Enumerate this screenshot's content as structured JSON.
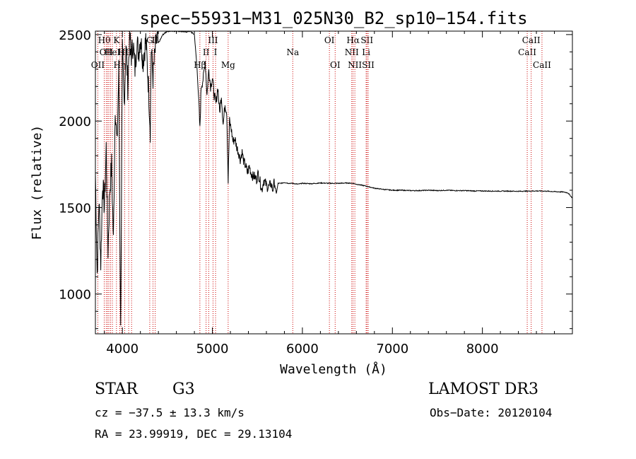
{
  "chart_data": {
    "type": "line",
    "title": "spec−55931−M31_025N30_B2_sp10−154.fits",
    "xlabel": "Wavelength (Å)",
    "ylabel": "Flux (relative)",
    "xlim": [
      3700,
      9000
    ],
    "ylim": [
      770,
      2520
    ],
    "xticks": [
      4000,
      5000,
      6000,
      7000,
      8000
    ],
    "xtick_labels": [
      "4000",
      "5000",
      "6000",
      "7000",
      "8000"
    ],
    "yticks": [
      1000,
      1500,
      2000,
      2500
    ],
    "ytick_labels": [
      "1000",
      "1500",
      "2000",
      "2500"
    ],
    "series": [
      {
        "x": [
          3700,
          3720,
          3740,
          3760,
          3780,
          3800,
          3820,
          3840,
          3860,
          3880,
          3900,
          3920,
          3940,
          3960,
          3980,
          4000,
          4020,
          4040,
          4060,
          4080,
          4100,
          4120,
          4140,
          4160,
          4180,
          4200,
          4230,
          4260,
          4290,
          4310,
          4320,
          4340,
          4360,
          4380,
          4400,
          4450,
          4500,
          4550,
          4600,
          4650,
          4700,
          4750,
          4800,
          4830,
          4850,
          4861,
          4875,
          4900,
          4920,
          4940,
          4960,
          4980,
          5000,
          5020,
          5040,
          5060,
          5080,
          5100,
          5120,
          5140,
          5160,
          5175,
          5190,
          5210,
          5230,
          5250,
          5270,
          5290,
          5310,
          5330,
          5350,
          5370,
          5390,
          5410,
          5430,
          5450,
          5470,
          5490,
          5510,
          5530,
          5550,
          5570,
          5590,
          5610,
          5630,
          5650,
          5670,
          5690,
          5710,
          5730,
          5760,
          5800,
          5850,
          5893,
          5950,
          6000,
          6100,
          6200,
          6300,
          6400,
          6500,
          6563,
          6600,
          6700,
          6800,
          6900,
          7000,
          7100,
          7200,
          7300,
          7400,
          7500,
          7600,
          7700,
          7800,
          7900,
          8000,
          8100,
          8200,
          8300,
          8400,
          8500,
          8600,
          8700,
          8800,
          8900,
          8950,
          9000
        ],
        "values": [
          1700,
          1120,
          1550,
          1180,
          1650,
          1500,
          1850,
          1250,
          1600,
          1750,
          1300,
          2100,
          1850,
          2300,
          780,
          2400,
          2100,
          2450,
          2200,
          2500,
          2380,
          2450,
          2300,
          2460,
          2400,
          2480,
          2350,
          2470,
          2200,
          1950,
          2420,
          2250,
          2380,
          2480,
          2450,
          2500,
          2520,
          2520,
          2520,
          2520,
          2515,
          2520,
          2500,
          2300,
          2100,
          1950,
          2200,
          2250,
          2350,
          2150,
          2300,
          2200,
          2250,
          2150,
          2100,
          2200,
          2050,
          2150,
          1980,
          2100,
          2050,
          1650,
          2000,
          1950,
          1880,
          1900,
          1850,
          1820,
          1780,
          1820,
          1760,
          1740,
          1700,
          1740,
          1700,
          1680,
          1680,
          1660,
          1700,
          1650,
          1600,
          1660,
          1640,
          1620,
          1620,
          1640,
          1600,
          1650,
          1580,
          1640,
          1640,
          1645,
          1640,
          1640,
          1635,
          1640,
          1638,
          1642,
          1640,
          1640,
          1642,
          1640,
          1635,
          1625,
          1612,
          1605,
          1600,
          1600,
          1598,
          1598,
          1600,
          1598,
          1600,
          1598,
          1598,
          1596,
          1596,
          1595,
          1595,
          1595,
          1594,
          1595,
          1596,
          1595,
          1592,
          1590,
          1585,
          1555
        ]
      }
    ],
    "line_color": "#000000",
    "marker_color": "#cc0000",
    "line_markers": [
      {
        "x": 3727,
        "label": "OII",
        "row": 3
      },
      {
        "x": 3798,
        "label": "Hθ",
        "row": 1
      },
      {
        "x": 3820,
        "label": "OII",
        "row": 2
      },
      {
        "x": 3835,
        "label": "",
        "row": 0
      },
      {
        "x": 3850,
        "label": "",
        "row": 0
      },
      {
        "x": 3869,
        "label": "",
        "row": 0
      },
      {
        "x": 3889,
        "label": "HeI",
        "row": 2
      },
      {
        "x": 3934,
        "label": "K",
        "row": 1
      },
      {
        "x": 3970,
        "label": "Hη",
        "row": 3
      },
      {
        "x": 3990,
        "label": "H",
        "row": 2
      },
      {
        "x": 4026,
        "label": "",
        "row": 0
      },
      {
        "x": 4070,
        "label": "II",
        "row": 2
      },
      {
        "x": 4102,
        "label": "",
        "row": 0
      },
      {
        "x": 4304,
        "label": "G",
        "row": 1
      },
      {
        "x": 4340,
        "label": "",
        "row": 0
      },
      {
        "x": 4364,
        "label": "II",
        "row": 1
      },
      {
        "x": 4861,
        "label": "Hβ",
        "row": 3
      },
      {
        "x": 4930,
        "label": "II",
        "row": 2
      },
      {
        "x": 4959,
        "label": "",
        "row": 0
      },
      {
        "x": 5007,
        "label": "III",
        "row": 1
      },
      {
        "x": 5035,
        "label": "I",
        "row": 2
      },
      {
        "x": 5175,
        "label": "Mg",
        "row": 3
      },
      {
        "x": 5893,
        "label": "Na",
        "row": 2
      },
      {
        "x": 6300,
        "label": "OI",
        "row": 1
      },
      {
        "x": 6364,
        "label": "OI",
        "row": 3
      },
      {
        "x": 6548,
        "label": "NII",
        "row": 2
      },
      {
        "x": 6563,
        "label": "Hα",
        "row": 1
      },
      {
        "x": 6583,
        "label": "NII",
        "row": 3
      },
      {
        "x": 6708,
        "label": "Li",
        "row": 2
      },
      {
        "x": 6717,
        "label": "SII",
        "row": 1
      },
      {
        "x": 6731,
        "label": "SII",
        "row": 3
      },
      {
        "x": 8498,
        "label": "CaII",
        "row": 2
      },
      {
        "x": 8542,
        "label": "CaII",
        "row": 1
      },
      {
        "x": 8662,
        "label": "CaII",
        "row": 3
      }
    ]
  },
  "info": {
    "class_label": "STAR",
    "subclass": "G3",
    "cz": "cz = −37.5 ± 13.3 km/s",
    "radec": "RA =  23.99919, DEC =  29.13104",
    "survey": "LAMOST DR3",
    "obs_date": "Obs−Date: 20120104"
  }
}
